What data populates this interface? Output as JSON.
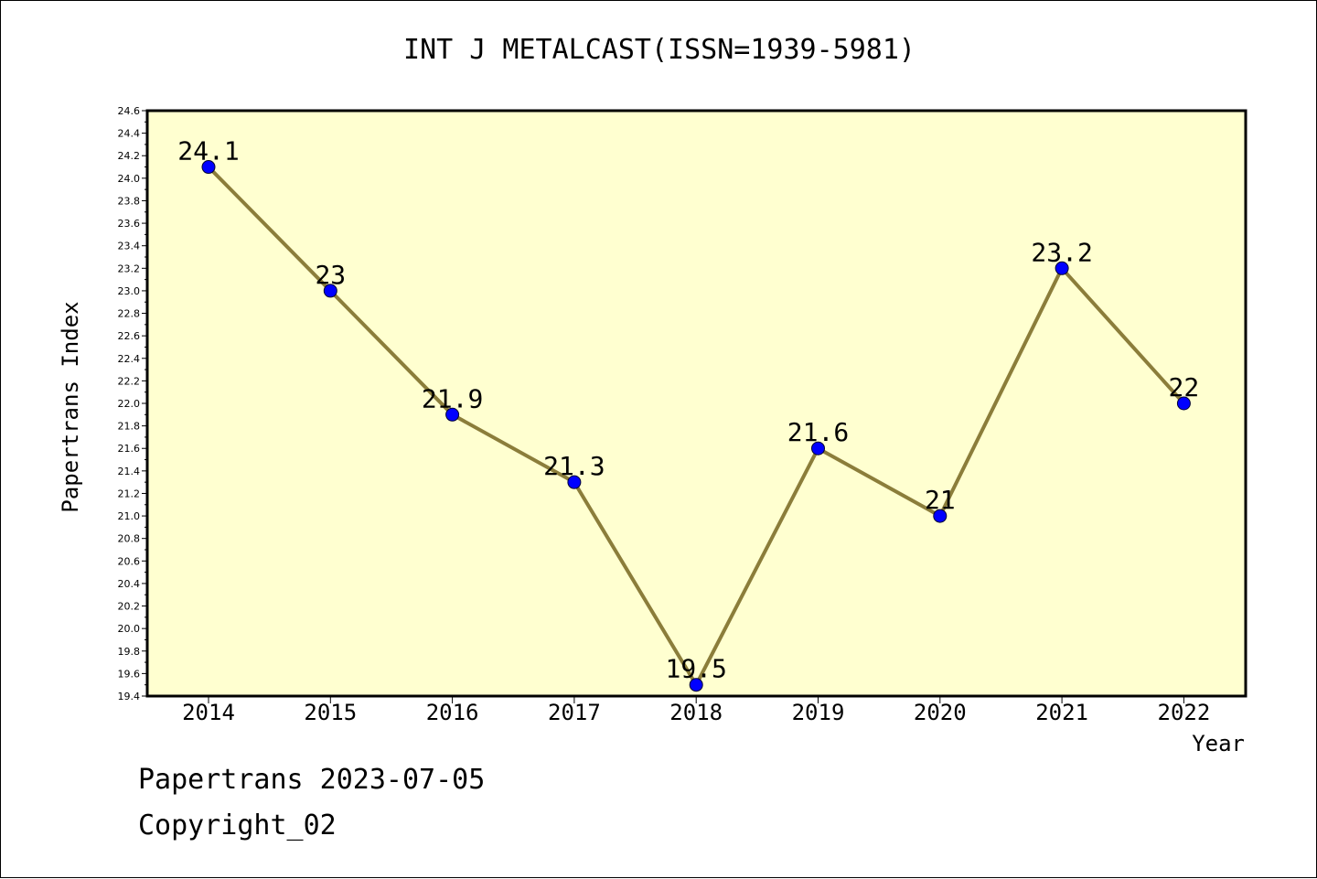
{
  "title": "INT J METALCAST(ISSN=1939-5981)",
  "footer": {
    "line1": "Papertrans 2023-07-05",
    "line2": "Copyright_02"
  },
  "colors": {
    "plot_background": "#ffffd0",
    "line": "#8b7d3a",
    "marker": "#0000ff",
    "axis": "#000000"
  },
  "chart_data": {
    "type": "line",
    "title": "INT J METALCAST(ISSN=1939-5981)",
    "xlabel": "Year",
    "ylabel": "Papertrans Index",
    "categories": [
      "2014",
      "2015",
      "2016",
      "2017",
      "2018",
      "2019",
      "2020",
      "2021",
      "2022"
    ],
    "series": [
      {
        "values": [
          24.1,
          23,
          21.9,
          21.3,
          19.5,
          21.6,
          21,
          23.2,
          22
        ],
        "labels": [
          "24.1",
          "23",
          "21.9",
          "21.3",
          "19.5",
          "21.6",
          "21",
          "23.2",
          "22"
        ]
      }
    ],
    "ylim": [
      19.4,
      24.6
    ],
    "yticks": [
      "19.4",
      "19.6",
      "19.8",
      "20.0",
      "20.2",
      "20.4",
      "20.6",
      "20.8",
      "21.0",
      "21.2",
      "21.4",
      "21.6",
      "21.8",
      "22.0",
      "22.2",
      "22.4",
      "22.6",
      "22.8",
      "23.0",
      "23.2",
      "23.4",
      "23.6",
      "23.8",
      "24.0",
      "24.2",
      "24.4",
      "24.6"
    ],
    "grid": false,
    "legend": "none"
  }
}
